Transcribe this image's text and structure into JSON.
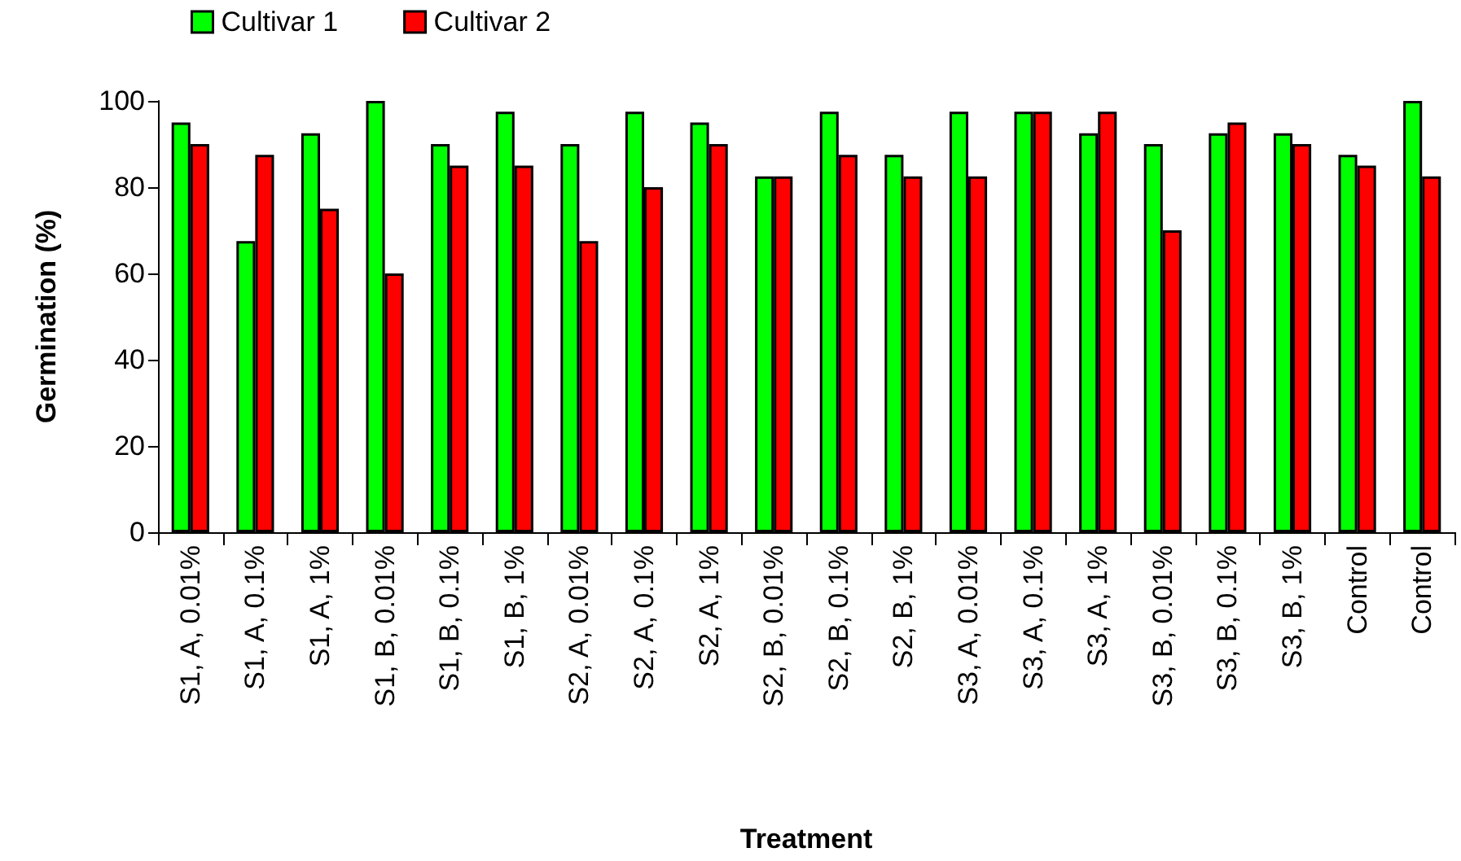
{
  "chart_data": {
    "type": "bar",
    "xlabel": "Treatment",
    "ylabel": "Germination (%)",
    "categories": [
      "S1, A, 0.01%",
      "S1, A, 0.1%",
      "S1, A, 1%",
      "S1, B, 0.01%",
      "S1, B, 0.1%",
      "S1, B, 1%",
      "S2, A, 0.01%",
      "S2, A, 0.1%",
      "S2, A, 1%",
      "S2, B, 0.01%",
      "S2, B, 0.1%",
      "S2, B, 1%",
      "S3, A, 0.01%",
      "S3, A, 0.1%",
      "S3, A, 1%",
      "S3, B, 0.01%",
      "S3, B, 0.1%",
      "S3, B, 1%",
      "Control",
      "Control"
    ],
    "series": [
      {
        "name": "Cultivar 1",
        "color": "#00ff00",
        "values": [
          95,
          67.5,
          92.5,
          100,
          90,
          97.5,
          90,
          97.5,
          95,
          82.5,
          97.5,
          87.5,
          97.5,
          97.5,
          92.5,
          90,
          92.5,
          92.5,
          87.5,
          100
        ]
      },
      {
        "name": "Cultivar 2",
        "color": "#ff0000",
        "values": [
          90,
          87.5,
          75,
          60,
          85,
          85,
          67.5,
          80,
          90,
          82.5,
          87.5,
          82.5,
          82.5,
          97.5,
          97.5,
          70,
          95,
          90,
          85,
          82.5
        ]
      }
    ],
    "ylim": [
      0,
      100
    ],
    "yticks": [
      0,
      20,
      40,
      60,
      80,
      100
    ],
    "grid": false,
    "legend": "top left"
  }
}
